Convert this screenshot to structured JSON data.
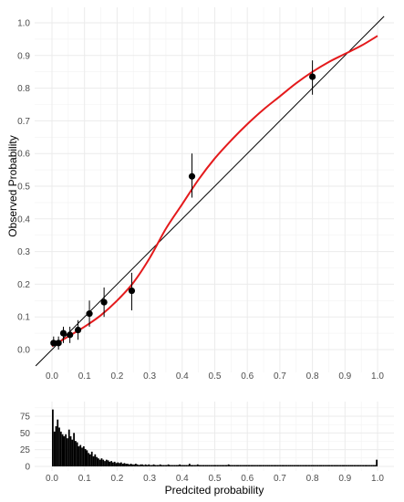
{
  "chart_data": [
    {
      "type": "scatter",
      "title": "",
      "xlabel": "",
      "ylabel": "Observed Probability",
      "xlim": [
        0,
        1
      ],
      "ylim": [
        0,
        1
      ],
      "x_ticks": [
        "0.0",
        "0.1",
        "0.2",
        "0.3",
        "0.4",
        "0.5",
        "0.6",
        "0.7",
        "0.8",
        "0.9",
        "1.0"
      ],
      "y_ticks": [
        "0.0",
        "0.1",
        "0.2",
        "0.3",
        "0.4",
        "0.5",
        "0.6",
        "0.7",
        "0.8",
        "0.9",
        "1.0"
      ],
      "grid": true,
      "reference_line": {
        "x": [
          -0.05,
          1.02
        ],
        "y": [
          -0.05,
          1.02
        ]
      },
      "points": [
        {
          "x": 0.005,
          "y": 0.02,
          "lo": 0.01,
          "hi": 0.04
        },
        {
          "x": 0.02,
          "y": 0.02,
          "lo": 0.0,
          "hi": 0.04
        },
        {
          "x": 0.035,
          "y": 0.05,
          "lo": 0.02,
          "hi": 0.07
        },
        {
          "x": 0.055,
          "y": 0.045,
          "lo": 0.02,
          "hi": 0.07
        },
        {
          "x": 0.08,
          "y": 0.06,
          "lo": 0.03,
          "hi": 0.09
        },
        {
          "x": 0.115,
          "y": 0.11,
          "lo": 0.07,
          "hi": 0.15
        },
        {
          "x": 0.16,
          "y": 0.145,
          "lo": 0.1,
          "hi": 0.19
        },
        {
          "x": 0.245,
          "y": 0.18,
          "lo": 0.12,
          "hi": 0.235
        },
        {
          "x": 0.43,
          "y": 0.53,
          "lo": 0.465,
          "hi": 0.6
        },
        {
          "x": 0.8,
          "y": 0.835,
          "lo": 0.78,
          "hi": 0.885
        }
      ],
      "smooth_curve": {
        "color": "#e41a1c",
        "x": [
          0.0,
          0.05,
          0.1,
          0.15,
          0.2,
          0.25,
          0.3,
          0.35,
          0.4,
          0.45,
          0.5,
          0.55,
          0.6,
          0.65,
          0.7,
          0.75,
          0.8,
          0.85,
          0.9,
          0.95,
          1.0
        ],
        "y": [
          0.01,
          0.04,
          0.07,
          0.105,
          0.15,
          0.205,
          0.28,
          0.37,
          0.445,
          0.52,
          0.585,
          0.64,
          0.69,
          0.735,
          0.775,
          0.815,
          0.85,
          0.88,
          0.905,
          0.93,
          0.96
        ]
      }
    },
    {
      "type": "bar",
      "title": "",
      "xlabel": "Predcited probability",
      "ylabel": "",
      "xlim": [
        0,
        1
      ],
      "ylim": [
        0,
        90
      ],
      "x_ticks": [
        "0.0",
        "0.1",
        "0.2",
        "0.3",
        "0.4",
        "0.5",
        "0.6",
        "0.7",
        "0.8",
        "0.9",
        "1.0"
      ],
      "y_ticks": [
        "0",
        "25",
        "50",
        "75"
      ],
      "grid": true,
      "bin_width": 0.005,
      "values": [
        85,
        52,
        60,
        70,
        58,
        52,
        48,
        45,
        48,
        42,
        55,
        45,
        40,
        50,
        38,
        36,
        30,
        32,
        28,
        30,
        26,
        24,
        20,
        18,
        22,
        15,
        18,
        14,
        12,
        10,
        12,
        10,
        8,
        10,
        9,
        7,
        8,
        6,
        7,
        5,
        6,
        5,
        6,
        4,
        5,
        4,
        4,
        3,
        4,
        3,
        3,
        4,
        3,
        2,
        3,
        3,
        2,
        3,
        2,
        3,
        2,
        2,
        3,
        2,
        2,
        2,
        3,
        2,
        2,
        2,
        2,
        3,
        2,
        2,
        2,
        2,
        2,
        2,
        3,
        2,
        2,
        2,
        2,
        2,
        4,
        2,
        2,
        2,
        2,
        3,
        2,
        2,
        2,
        2,
        2,
        2,
        2,
        2,
        2,
        2,
        2,
        2,
        2,
        2,
        2,
        2,
        2,
        2,
        3,
        2,
        2,
        2,
        2,
        2,
        2,
        2,
        2,
        2,
        2,
        2,
        2,
        2,
        2,
        2,
        2,
        2,
        2,
        2,
        2,
        2,
        2,
        2,
        2,
        2,
        2,
        2,
        2,
        2,
        2,
        2,
        2,
        2,
        2,
        2,
        2,
        2,
        2,
        2,
        2,
        2,
        2,
        2,
        2,
        2,
        2,
        2,
        2,
        2,
        2,
        2,
        2,
        2,
        2,
        2,
        2,
        2,
        2,
        2,
        2,
        2,
        2,
        2,
        2,
        2,
        2,
        2,
        2,
        2,
        2,
        2,
        2,
        2,
        2,
        2,
        2,
        2,
        2,
        2,
        2,
        2,
        2,
        2,
        2,
        2,
        2,
        2,
        2,
        2,
        2,
        10
      ]
    }
  ]
}
